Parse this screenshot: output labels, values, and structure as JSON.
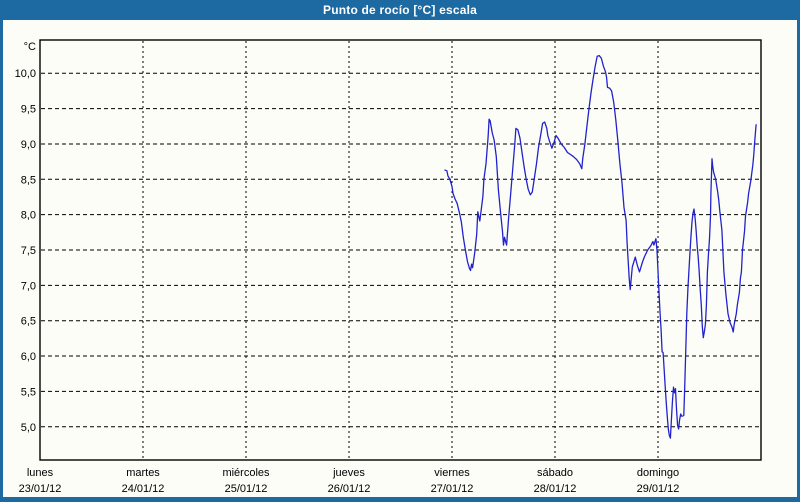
{
  "window": {
    "title": "Punto de rocío [°C] escala"
  },
  "colors": {
    "titlebar_bg": "#1d69a2",
    "titlebar_text": "#ffffff",
    "frame_border": "#1d69a2",
    "chart_bg": "#fcfdf7",
    "plot_border": "#000000",
    "grid": "#000000",
    "tick_text": "#000000",
    "line": "#2222cd"
  },
  "chart_data": {
    "type": "line",
    "title": "Punto de rocío [°C] escala",
    "legend": "none",
    "grid": "dashed",
    "y_axis": {
      "unit_label": "°C",
      "tick_values": [
        10.0,
        9.5,
        9.0,
        8.5,
        8.0,
        7.5,
        7.0,
        6.5,
        6.0,
        5.5,
        5.0
      ],
      "tick_labels": [
        "10,0",
        "9,5",
        "9,0",
        "8,5",
        "8,0",
        "7,5",
        "7,0",
        "6,5",
        "6,0",
        "5,5",
        "5,0"
      ],
      "ylim": [
        4.53,
        10.47
      ]
    },
    "x_axis": {
      "xlim_days": [
        0,
        7
      ],
      "days": [
        {
          "name": "lunes",
          "date": "23/01/12"
        },
        {
          "name": "martes",
          "date": "24/01/12"
        },
        {
          "name": "miércoles",
          "date": "25/01/12"
        },
        {
          "name": "jueves",
          "date": "26/01/12"
        },
        {
          "name": "viernes",
          "date": "27/01/12"
        },
        {
          "name": "sábado",
          "date": "28/01/12"
        },
        {
          "name": "domingo",
          "date": "29/01/12"
        }
      ]
    },
    "series": [
      {
        "name": "Punto de rocío",
        "color": "#2222cd",
        "x_unit": "days_since_monday_start",
        "y_unit": "°C",
        "points": [
          [
            3.932,
            8.63
          ],
          [
            3.95,
            8.62
          ],
          [
            3.96,
            8.55
          ],
          [
            3.98,
            8.5
          ],
          [
            4.0,
            8.4
          ],
          [
            4.01,
            8.3
          ],
          [
            4.03,
            8.22
          ],
          [
            4.05,
            8.16
          ],
          [
            4.07,
            8.04
          ],
          [
            4.09,
            7.9
          ],
          [
            4.11,
            7.68
          ],
          [
            4.13,
            7.5
          ],
          [
            4.15,
            7.34
          ],
          [
            4.17,
            7.24
          ],
          [
            4.18,
            7.21
          ],
          [
            4.19,
            7.3
          ],
          [
            4.2,
            7.25
          ],
          [
            4.22,
            7.46
          ],
          [
            4.24,
            7.72
          ],
          [
            4.25,
            8.04
          ],
          [
            4.27,
            7.91
          ],
          [
            4.28,
            8.02
          ],
          [
            4.3,
            8.26
          ],
          [
            4.31,
            8.5
          ],
          [
            4.33,
            8.72
          ],
          [
            4.35,
            9.1
          ],
          [
            4.36,
            9.35
          ],
          [
            4.37,
            9.33
          ],
          [
            4.39,
            9.16
          ],
          [
            4.41,
            9.05
          ],
          [
            4.43,
            8.82
          ],
          [
            4.45,
            8.35
          ],
          [
            4.47,
            8.05
          ],
          [
            4.49,
            7.76
          ],
          [
            4.5,
            7.57
          ],
          [
            4.51,
            7.68
          ],
          [
            4.53,
            7.57
          ],
          [
            4.55,
            7.95
          ],
          [
            4.57,
            8.3
          ],
          [
            4.59,
            8.66
          ],
          [
            4.61,
            9.0
          ],
          [
            4.62,
            9.22
          ],
          [
            4.64,
            9.2
          ],
          [
            4.66,
            9.08
          ],
          [
            4.68,
            8.88
          ],
          [
            4.7,
            8.68
          ],
          [
            4.72,
            8.5
          ],
          [
            4.74,
            8.36
          ],
          [
            4.76,
            8.28
          ],
          [
            4.78,
            8.32
          ],
          [
            4.8,
            8.52
          ],
          [
            4.82,
            8.72
          ],
          [
            4.84,
            8.95
          ],
          [
            4.86,
            9.12
          ],
          [
            4.88,
            9.29
          ],
          [
            4.9,
            9.31
          ],
          [
            4.92,
            9.22
          ],
          [
            4.93,
            9.12
          ],
          [
            4.95,
            9.02
          ],
          [
            4.97,
            8.94
          ],
          [
            4.99,
            9.02
          ],
          [
            5.01,
            9.12
          ],
          [
            5.03,
            9.08
          ],
          [
            5.06,
            9.0
          ],
          [
            5.09,
            8.95
          ],
          [
            5.12,
            8.88
          ],
          [
            5.15,
            8.85
          ],
          [
            5.18,
            8.82
          ],
          [
            5.21,
            8.78
          ],
          [
            5.24,
            8.72
          ],
          [
            5.26,
            8.65
          ],
          [
            5.27,
            8.8
          ],
          [
            5.29,
            9.0
          ],
          [
            5.31,
            9.25
          ],
          [
            5.33,
            9.5
          ],
          [
            5.35,
            9.72
          ],
          [
            5.37,
            9.92
          ],
          [
            5.39,
            10.1
          ],
          [
            5.41,
            10.24
          ],
          [
            5.43,
            10.25
          ],
          [
            5.45,
            10.21
          ],
          [
            5.47,
            10.1
          ],
          [
            5.49,
            10.02
          ],
          [
            5.5,
            9.95
          ],
          [
            5.51,
            9.8
          ],
          [
            5.53,
            9.79
          ],
          [
            5.55,
            9.75
          ],
          [
            5.57,
            9.59
          ],
          [
            5.59,
            9.34
          ],
          [
            5.61,
            9.05
          ],
          [
            5.63,
            8.72
          ],
          [
            5.65,
            8.45
          ],
          [
            5.67,
            8.1
          ],
          [
            5.69,
            7.92
          ],
          [
            5.7,
            7.6
          ],
          [
            5.72,
            7.1
          ],
          [
            5.73,
            6.94
          ],
          [
            5.75,
            7.26
          ],
          [
            5.78,
            7.4
          ],
          [
            5.8,
            7.28
          ],
          [
            5.82,
            7.19
          ],
          [
            5.85,
            7.33
          ],
          [
            5.87,
            7.41
          ],
          [
            5.9,
            7.5
          ],
          [
            5.93,
            7.56
          ],
          [
            5.95,
            7.62
          ],
          [
            5.96,
            7.57
          ],
          [
            5.98,
            7.66
          ],
          [
            5.99,
            7.5
          ],
          [
            6.0,
            7.2
          ],
          [
            6.01,
            6.9
          ],
          [
            6.02,
            6.6
          ],
          [
            6.03,
            6.37
          ],
          [
            6.04,
            6.06
          ],
          [
            6.05,
            6.05
          ],
          [
            6.06,
            5.8
          ],
          [
            6.07,
            5.57
          ],
          [
            6.08,
            5.35
          ],
          [
            6.09,
            5.14
          ],
          [
            6.1,
            4.97
          ],
          [
            6.11,
            4.88
          ],
          [
            6.12,
            4.84
          ],
          [
            6.13,
            5.1
          ],
          [
            6.14,
            5.35
          ],
          [
            6.15,
            5.56
          ],
          [
            6.16,
            5.48
          ],
          [
            6.17,
            5.54
          ],
          [
            6.18,
            5.25
          ],
          [
            6.19,
            5.02
          ],
          [
            6.2,
            4.97
          ],
          [
            6.21,
            5.1
          ],
          [
            6.22,
            5.18
          ],
          [
            6.23,
            5.15
          ],
          [
            6.25,
            5.16
          ],
          [
            6.26,
            5.6
          ],
          [
            6.27,
            6.1
          ],
          [
            6.28,
            6.6
          ],
          [
            6.29,
            6.95
          ],
          [
            6.3,
            7.2
          ],
          [
            6.31,
            7.45
          ],
          [
            6.32,
            7.7
          ],
          [
            6.33,
            7.9
          ],
          [
            6.34,
            8.02
          ],
          [
            6.35,
            8.08
          ],
          [
            6.36,
            7.95
          ],
          [
            6.37,
            7.78
          ],
          [
            6.38,
            7.57
          ],
          [
            6.39,
            7.4
          ],
          [
            6.4,
            7.19
          ],
          [
            6.41,
            6.95
          ],
          [
            6.42,
            6.72
          ],
          [
            6.43,
            6.42
          ],
          [
            6.44,
            6.26
          ],
          [
            6.45,
            6.35
          ],
          [
            6.46,
            6.45
          ],
          [
            6.47,
            6.72
          ],
          [
            6.48,
            7.19
          ],
          [
            6.49,
            7.45
          ],
          [
            6.5,
            7.66
          ],
          [
            6.51,
            7.98
          ],
          [
            6.514,
            8.3
          ],
          [
            6.524,
            8.79
          ],
          [
            6.53,
            8.7
          ],
          [
            6.54,
            8.6
          ],
          [
            6.56,
            8.5
          ],
          [
            6.58,
            8.32
          ],
          [
            6.59,
            8.2
          ],
          [
            6.6,
            8.05
          ],
          [
            6.62,
            7.78
          ],
          [
            6.64,
            7.19
          ],
          [
            6.66,
            6.86
          ],
          [
            6.68,
            6.6
          ],
          [
            6.7,
            6.47
          ],
          [
            6.72,
            6.4
          ],
          [
            6.73,
            6.34
          ],
          [
            6.74,
            6.45
          ],
          [
            6.76,
            6.6
          ],
          [
            6.77,
            6.72
          ],
          [
            6.79,
            6.9
          ],
          [
            6.8,
            7.1
          ],
          [
            6.81,
            7.19
          ],
          [
            6.82,
            7.5
          ],
          [
            6.84,
            7.76
          ],
          [
            6.85,
            7.98
          ],
          [
            6.87,
            8.17
          ],
          [
            6.88,
            8.3
          ],
          [
            6.9,
            8.47
          ],
          [
            6.92,
            8.7
          ],
          [
            6.93,
            8.85
          ],
          [
            6.94,
            9.05
          ],
          [
            6.952,
            9.27
          ]
        ]
      }
    ]
  }
}
